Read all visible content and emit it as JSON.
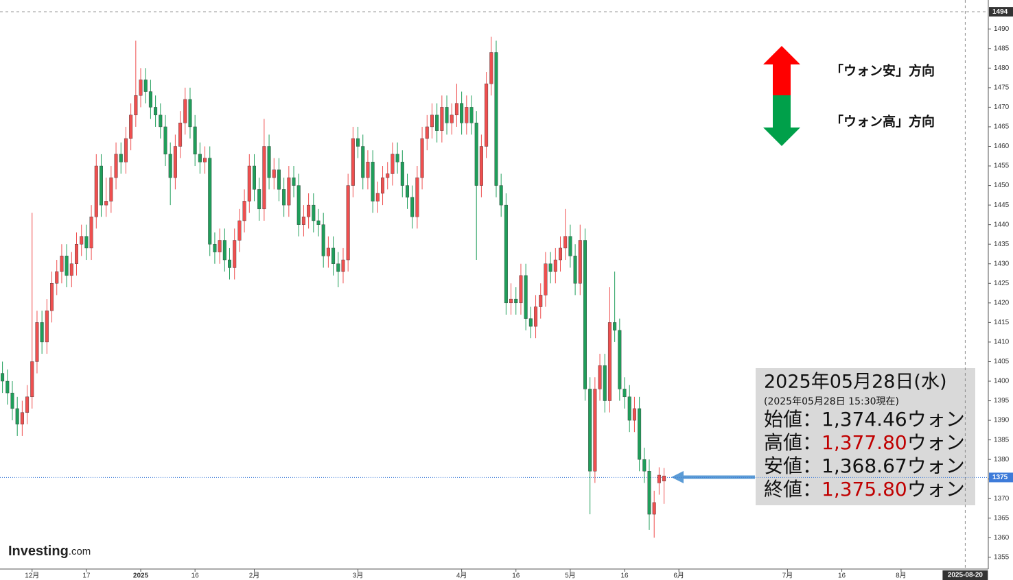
{
  "chart_data": {
    "type": "candlestick",
    "categories": [
      null,
      null,
      null,
      null,
      null,
      null,
      "12月",
      null,
      null,
      null,
      null,
      null,
      null,
      null,
      null,
      null,
      null,
      "17",
      null,
      null,
      null,
      null,
      null,
      null,
      null,
      null,
      null,
      null,
      "2025",
      null,
      null,
      null,
      null,
      null,
      null,
      null,
      null,
      null,
      null,
      "16",
      null,
      null,
      null,
      null,
      null,
      null,
      null,
      null,
      null,
      null,
      null,
      "2月",
      null,
      null,
      null,
      null,
      null,
      null,
      null,
      null,
      null,
      null,
      null,
      null,
      null,
      null,
      null,
      null,
      null,
      null,
      null,
      null,
      "3月",
      null,
      null,
      null,
      null,
      null,
      null,
      null,
      null,
      null,
      null,
      null,
      null,
      null,
      null,
      null,
      null,
      null,
      null,
      null,
      null,
      "4月",
      null,
      null,
      null,
      null,
      null,
      null,
      null,
      null,
      null,
      null,
      "16",
      null,
      null,
      null,
      null,
      null,
      null,
      null,
      null,
      null,
      null,
      "5月",
      null,
      null,
      null,
      null,
      null,
      null,
      null,
      null,
      null,
      null,
      "16",
      null,
      null,
      null,
      null,
      null,
      null,
      null,
      null,
      null,
      null,
      "6月",
      null,
      null,
      null,
      null,
      null,
      null,
      null,
      null,
      null,
      null,
      null,
      null,
      null,
      null,
      null,
      null,
      null,
      null,
      null,
      null,
      null,
      "7月",
      null,
      null,
      null,
      null,
      null,
      null,
      null,
      null,
      null,
      null,
      "16",
      null,
      null,
      null,
      null,
      null,
      null,
      null,
      null,
      null,
      null,
      null,
      "8月",
      null,
      null,
      null,
      null,
      null,
      null,
      null,
      null,
      null,
      null,
      null,
      null,
      "2025-08-20"
    ],
    "open": [
      1402,
      1400,
      1397,
      1393,
      1389,
      1392,
      1396,
      1405,
      1415,
      1410,
      1418,
      1425,
      1428,
      1432,
      1427,
      1430,
      1435,
      1437,
      1434,
      1442,
      1455,
      1445,
      1446,
      1452,
      1458,
      1456,
      1462,
      1468,
      1473,
      1477,
      1474,
      1470,
      1468,
      1465,
      1458,
      1452,
      1460,
      1466,
      1472,
      1465,
      1458,
      1456,
      1457,
      1435,
      1433,
      1436,
      1431,
      1429,
      1436,
      1441,
      1446,
      1455,
      1449,
      1444,
      1460,
      1452,
      1454,
      1449,
      1445,
      1452,
      1450,
      1440,
      1442,
      1445,
      1441,
      1440,
      1432,
      1434,
      1430,
      1428,
      1431,
      1450,
      1462,
      1460,
      1452,
      1456,
      1446,
      1448,
      1452,
      1453,
      1458,
      1456,
      1450,
      1447,
      1442,
      1452,
      1462,
      1465,
      1468,
      1464,
      1470,
      1466,
      1468,
      1471,
      1466,
      1470,
      1466,
      1450,
      1460,
      1476,
      1484,
      1450,
      1445,
      1420,
      1421,
      1420,
      1427,
      1416,
      1414,
      1419,
      1422,
      1430,
      1428,
      1431,
      1434,
      1437,
      1432,
      1425,
      1436,
      1398,
      1377,
      1398,
      1404,
      1395,
      1415,
      1413,
      1398,
      1396,
      1390,
      1393,
      1380,
      1377,
      1366,
      1374,
      1374.46,
      null,
      null,
      null,
      null,
      null,
      null,
      null,
      null,
      null,
      null,
      null,
      null,
      null,
      null,
      null,
      null,
      null,
      null,
      null,
      null,
      null,
      null,
      null,
      null,
      null,
      null,
      null,
      null,
      null,
      null,
      null,
      null,
      null,
      null,
      null,
      null,
      null,
      null,
      null,
      null,
      null,
      null,
      null,
      null,
      null,
      null,
      null,
      null,
      null,
      null,
      null,
      null,
      null,
      null,
      null,
      null,
      null,
      null,
      null,
      null,
      null
    ],
    "high": [
      1405,
      1403,
      1400,
      1396,
      1395,
      1399,
      1443,
      1418,
      1418,
      1421,
      1428,
      1431,
      1435,
      1435,
      1433,
      1438,
      1440,
      1440,
      1445,
      1458,
      1458,
      1452,
      1455,
      1461,
      1461,
      1465,
      1471,
      1487,
      1480,
      1480,
      1477,
      1473,
      1471,
      1468,
      1461,
      1463,
      1469,
      1475,
      1475,
      1468,
      1461,
      1460,
      1460,
      1438,
      1439,
      1439,
      1434,
      1439,
      1444,
      1449,
      1458,
      1458,
      1452,
      1467,
      1463,
      1457,
      1457,
      1452,
      1455,
      1455,
      1453,
      1445,
      1448,
      1448,
      1444,
      1443,
      1437,
      1437,
      1433,
      1434,
      1453,
      1465,
      1465,
      1463,
      1459,
      1459,
      1451,
      1455,
      1456,
      1461,
      1461,
      1459,
      1453,
      1450,
      1455,
      1465,
      1468,
      1471,
      1471,
      1473,
      1473,
      1471,
      1476,
      1474,
      1473,
      1473,
      1469,
      1463,
      1479,
      1488,
      1487,
      1453,
      1448,
      1425,
      1424,
      1430,
      1430,
      1419,
      1422,
      1425,
      1433,
      1433,
      1434,
      1437,
      1444,
      1440,
      1435,
      1440,
      1439,
      1401,
      1401,
      1407,
      1407,
      1424,
      1428,
      1416,
      1401,
      1399,
      1396,
      1396,
      1383,
      1380,
      1372,
      1378,
      1377.8,
      null,
      null,
      null,
      null,
      null,
      null,
      null,
      null,
      null,
      null,
      null,
      null,
      null,
      null,
      null,
      null,
      null,
      null,
      null,
      null,
      null,
      null,
      null,
      null,
      null,
      null,
      null,
      null,
      null,
      null,
      null,
      null,
      null,
      null,
      null,
      null,
      null,
      null,
      null,
      null,
      null,
      null,
      null,
      null,
      null,
      null,
      null,
      null,
      null,
      null,
      null,
      null,
      null,
      null,
      null,
      null,
      null,
      null,
      null,
      null,
      null
    ],
    "low": [
      1397,
      1394,
      1390,
      1386,
      1386,
      1389,
      1393,
      1402,
      1407,
      1407,
      1415,
      1422,
      1425,
      1424,
      1424,
      1427,
      1432,
      1431,
      1431,
      1439,
      1442,
      1442,
      1443,
      1449,
      1453,
      1453,
      1459,
      1465,
      1470,
      1471,
      1467,
      1465,
      1462,
      1455,
      1445,
      1449,
      1457,
      1463,
      1462,
      1455,
      1453,
      1453,
      1432,
      1430,
      1430,
      1428,
      1426,
      1426,
      1433,
      1438,
      1443,
      1446,
      1441,
      1441,
      1449,
      1449,
      1446,
      1442,
      1442,
      1447,
      1437,
      1437,
      1439,
      1438,
      1437,
      1429,
      1429,
      1427,
      1424,
      1425,
      1428,
      1447,
      1457,
      1449,
      1449,
      1443,
      1443,
      1445,
      1449,
      1450,
      1453,
      1447,
      1444,
      1439,
      1439,
      1449,
      1459,
      1462,
      1461,
      1461,
      1463,
      1463,
      1465,
      1463,
      1463,
      1463,
      1431,
      1447,
      1457,
      1473,
      1447,
      1442,
      1417,
      1417,
      1417,
      1417,
      1413,
      1411,
      1411,
      1416,
      1419,
      1425,
      1425,
      1428,
      1431,
      1429,
      1422,
      1422,
      1395,
      1366,
      1374,
      1395,
      1392,
      1392,
      1410,
      1395,
      1393,
      1387,
      1387,
      1377,
      1374,
      1362,
      1360,
      1371,
      1368.67,
      null,
      null,
      null,
      null,
      null,
      null,
      null,
      null,
      null,
      null,
      null,
      null,
      null,
      null,
      null,
      null,
      null,
      null,
      null,
      null,
      null,
      null,
      null,
      null,
      null,
      null,
      null,
      null,
      null,
      null,
      null,
      null,
      null,
      null,
      null,
      null,
      null,
      null,
      null,
      null,
      null,
      null,
      null,
      null,
      null,
      null,
      null,
      null,
      null,
      null,
      null,
      null,
      null,
      null,
      null,
      null,
      null,
      null,
      null,
      null,
      null
    ],
    "close": [
      1400,
      1397,
      1393,
      1389,
      1392,
      1396,
      1405,
      1415,
      1410,
      1418,
      1425,
      1428,
      1432,
      1427,
      1430,
      1435,
      1437,
      1434,
      1442,
      1455,
      1445,
      1446,
      1452,
      1458,
      1456,
      1462,
      1468,
      1473,
      1477,
      1474,
      1470,
      1468,
      1465,
      1458,
      1452,
      1460,
      1466,
      1472,
      1465,
      1458,
      1456,
      1457,
      1435,
      1433,
      1436,
      1431,
      1429,
      1436,
      1441,
      1446,
      1455,
      1449,
      1444,
      1460,
      1452,
      1454,
      1449,
      1445,
      1452,
      1450,
      1440,
      1442,
      1445,
      1441,
      1440,
      1432,
      1434,
      1430,
      1428,
      1431,
      1450,
      1462,
      1460,
      1452,
      1456,
      1446,
      1448,
      1452,
      1453,
      1458,
      1456,
      1450,
      1447,
      1442,
      1452,
      1462,
      1465,
      1468,
      1464,
      1470,
      1466,
      1468,
      1471,
      1466,
      1470,
      1466,
      1450,
      1460,
      1476,
      1484,
      1450,
      1445,
      1420,
      1421,
      1420,
      1427,
      1416,
      1414,
      1419,
      1422,
      1430,
      1428,
      1431,
      1434,
      1437,
      1432,
      1425,
      1436,
      1398,
      1377,
      1398,
      1404,
      1395,
      1415,
      1413,
      1398,
      1396,
      1390,
      1393,
      1380,
      1377,
      1366,
      1369,
      1376,
      1375.8,
      null,
      null,
      null,
      null,
      null,
      null,
      null,
      null,
      null,
      null,
      null,
      null,
      null,
      null,
      null,
      null,
      null,
      null,
      null,
      null,
      null,
      null,
      null,
      null,
      null,
      null,
      null,
      null,
      null,
      null,
      null,
      null,
      null,
      null,
      null,
      null,
      null,
      null,
      null,
      null,
      null,
      null,
      null,
      null,
      null,
      null,
      null,
      null,
      null,
      null,
      null,
      null,
      null,
      null,
      null,
      null,
      null,
      null,
      null,
      null,
      null
    ],
    "up_color": "#ef4f4f",
    "down_color": "#1f9e5a",
    "ylim": [
      1352,
      1497.4
    ],
    "yticks": [
      1355,
      1360,
      1365,
      1370,
      1375,
      1380,
      1385,
      1390,
      1395,
      1400,
      1405,
      1410,
      1415,
      1420,
      1425,
      1430,
      1435,
      1440,
      1445,
      1450,
      1455,
      1460,
      1465,
      1470,
      1475,
      1480,
      1485,
      1490
    ],
    "y_markers": [
      {
        "value": 1494.4,
        "label": "1494"
      },
      {
        "value": 1375.4,
        "label": "1375"
      }
    ],
    "annotations": [
      "「ウォン安」方向",
      "「ウォン高」方向"
    ],
    "info_box": {
      "date": "2025年05月28日(水)",
      "note": "(2025年05月28日 15:30現在)",
      "rows": [
        {
          "label": "始値：",
          "value": "1,374.46",
          "unit": "ウォン",
          "color": "#111111"
        },
        {
          "label": "高値：",
          "value": "1,377.80",
          "unit": "ウォン",
          "color": "#c00000"
        },
        {
          "label": "安値：",
          "value": "1,368.67",
          "unit": "ウォン",
          "color": "#111111"
        },
        {
          "label": "終値：",
          "value": "1,375.80",
          "unit": "ウォン",
          "color": "#c00000"
        }
      ]
    },
    "brand": "Investing",
    "brand_suffix": ".com"
  }
}
